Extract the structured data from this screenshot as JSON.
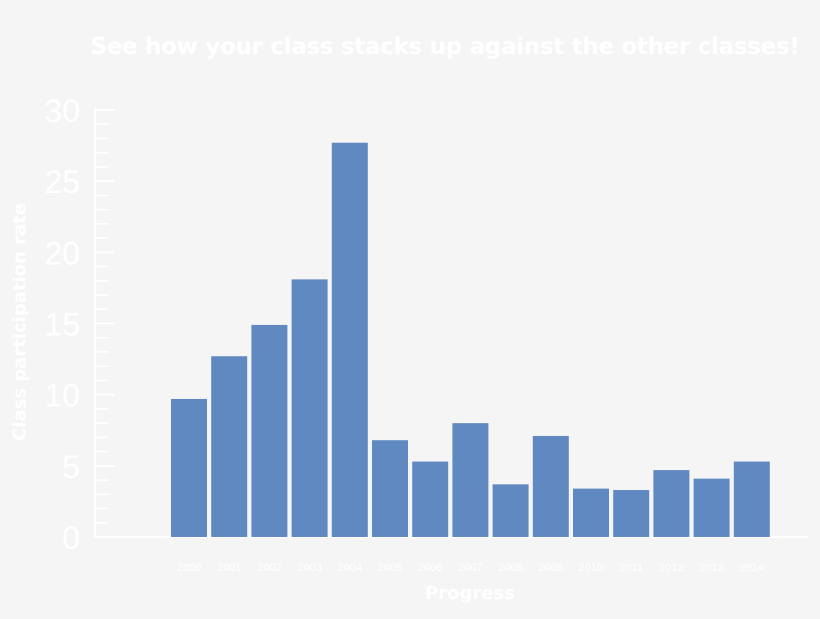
{
  "chart_data": {
    "type": "bar",
    "title": "See how your class stacks up against the other classes!",
    "xlabel": "Progress",
    "ylabel": "Class participation rate",
    "categories": [
      "2000",
      "2001",
      "2002",
      "2003",
      "2004",
      "2005",
      "2006",
      "2007",
      "2008",
      "2009",
      "2010",
      "2011",
      "2012",
      "2013",
      "2014"
    ],
    "values": [
      9.7,
      12.7,
      14.9,
      18.1,
      27.7,
      6.8,
      5.3,
      8.0,
      3.7,
      7.1,
      3.4,
      3.3,
      4.7,
      4.1,
      5.3
    ],
    "ylim": [
      0,
      30
    ],
    "yticks": [
      "0",
      "5",
      "10",
      "15",
      "20",
      "25",
      "30"
    ],
    "grid": false,
    "legend": "none",
    "bar_color": "#6089c1",
    "text_color": "#ffffff"
  }
}
